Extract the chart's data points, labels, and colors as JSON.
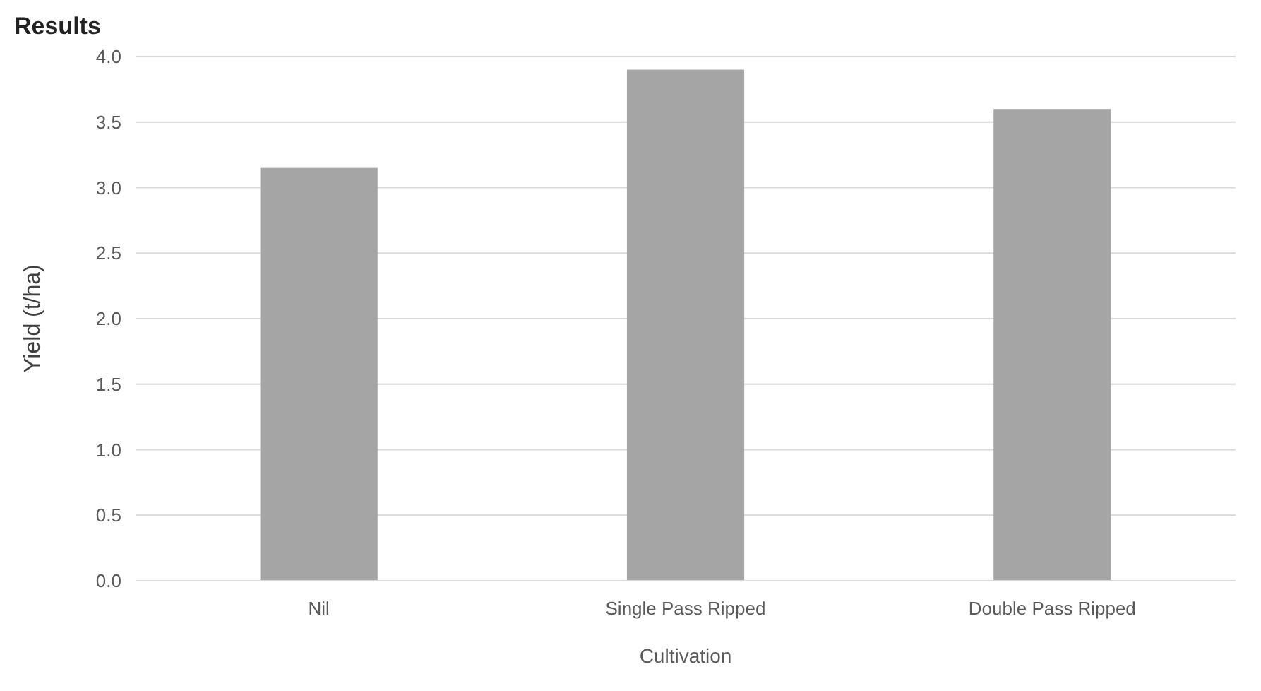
{
  "chart_data": {
    "type": "bar",
    "title": "Results",
    "xlabel": "Cultivation",
    "ylabel": "Yield (t/ha)",
    "categories": [
      "Nil",
      "Single Pass Ripped",
      "Double Pass Ripped"
    ],
    "values": [
      3.15,
      3.9,
      3.6
    ],
    "color": "#a5a5a5",
    "ylim": [
      0,
      4
    ],
    "yticks": [
      {
        "value": 0,
        "label": "0.0"
      },
      {
        "value": 0.5,
        "label": "0.5"
      },
      {
        "value": 1,
        "label": "1.0"
      },
      {
        "value": 1.5,
        "label": "1.5"
      },
      {
        "value": 2,
        "label": "2.0"
      },
      {
        "value": 2.5,
        "label": "2.5"
      },
      {
        "value": 3,
        "label": "3.0"
      },
      {
        "value": 3.5,
        "label": "3.5"
      },
      {
        "value": 4,
        "label": "4.0"
      }
    ],
    "grid": true
  }
}
